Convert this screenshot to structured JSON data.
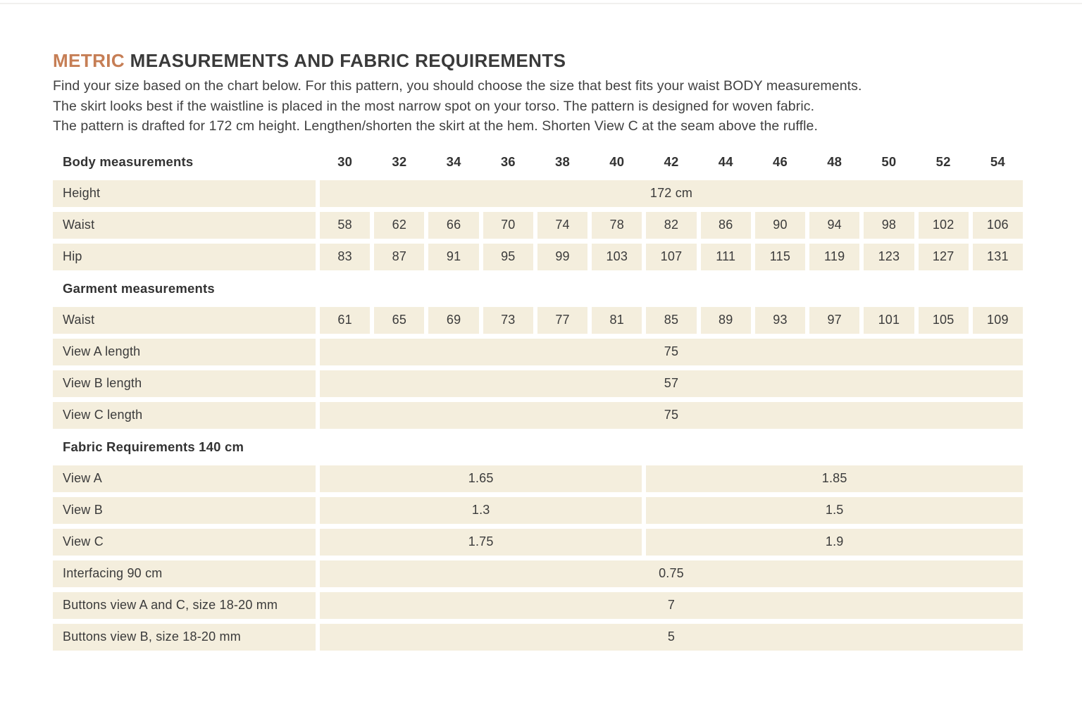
{
  "colors": {
    "accent": "#c67e55",
    "cell_bg": "#f4eedd",
    "text": "#3a3a3a"
  },
  "header": {
    "title_accent": "METRIC",
    "title_rest": " MEASUREMENTS AND FABRIC REQUIREMENTS",
    "intro_lines": [
      "Find your size based on the chart below. For this pattern, you should choose the size that best fits your waist BODY measurements.",
      "The skirt looks best if the waistline is placed in the most narrow spot on your torso. The pattern is designed for woven fabric.",
      "The pattern is drafted for 172 cm height. Lengthen/shorten the skirt at the hem. Shorten View C at the seam above the ruffle."
    ]
  },
  "table": {
    "sizes_header": {
      "label": "Body measurements",
      "sizes": [
        "30",
        "32",
        "34",
        "36",
        "38",
        "40",
        "42",
        "44",
        "46",
        "48",
        "50",
        "52",
        "54"
      ]
    },
    "height": {
      "label": "Height",
      "value": "172 cm"
    },
    "body_waist": {
      "label": "Waist",
      "values": [
        "58",
        "62",
        "66",
        "70",
        "74",
        "78",
        "82",
        "86",
        "90",
        "94",
        "98",
        "102",
        "106"
      ]
    },
    "hip": {
      "label": "Hip",
      "values": [
        "83",
        "87",
        "91",
        "95",
        "99",
        "103",
        "107",
        "111",
        "115",
        "119",
        "123",
        "127",
        "131"
      ]
    },
    "garment_heading": "Garment measurements",
    "garment_waist": {
      "label": "Waist",
      "values": [
        "61",
        "65",
        "69",
        "73",
        "77",
        "81",
        "85",
        "89",
        "93",
        "97",
        "101",
        "105",
        "109"
      ]
    },
    "view_a_length": {
      "label": "View A length",
      "value": "75"
    },
    "view_b_length": {
      "label": "View B length",
      "value": "57"
    },
    "view_c_length": {
      "label": "View C length",
      "value": "75"
    },
    "fabric_heading": "Fabric Requirements 140 cm",
    "fabric_view_a": {
      "label": "View A",
      "sizes_30_40": "1.65",
      "sizes_42_54": "1.85"
    },
    "fabric_view_b": {
      "label": "View B",
      "sizes_30_40": "1.3",
      "sizes_42_54": "1.5"
    },
    "fabric_view_c": {
      "label": "View C",
      "sizes_30_40": "1.75",
      "sizes_42_54": "1.9"
    },
    "interfacing": {
      "label": "Interfacing 90 cm",
      "value": "0.75"
    },
    "buttons_ac": {
      "label": "Buttons view A and C, size 18-20 mm",
      "value": "7"
    },
    "buttons_b": {
      "label": "Buttons view B, size 18-20 mm",
      "value": "5"
    }
  }
}
